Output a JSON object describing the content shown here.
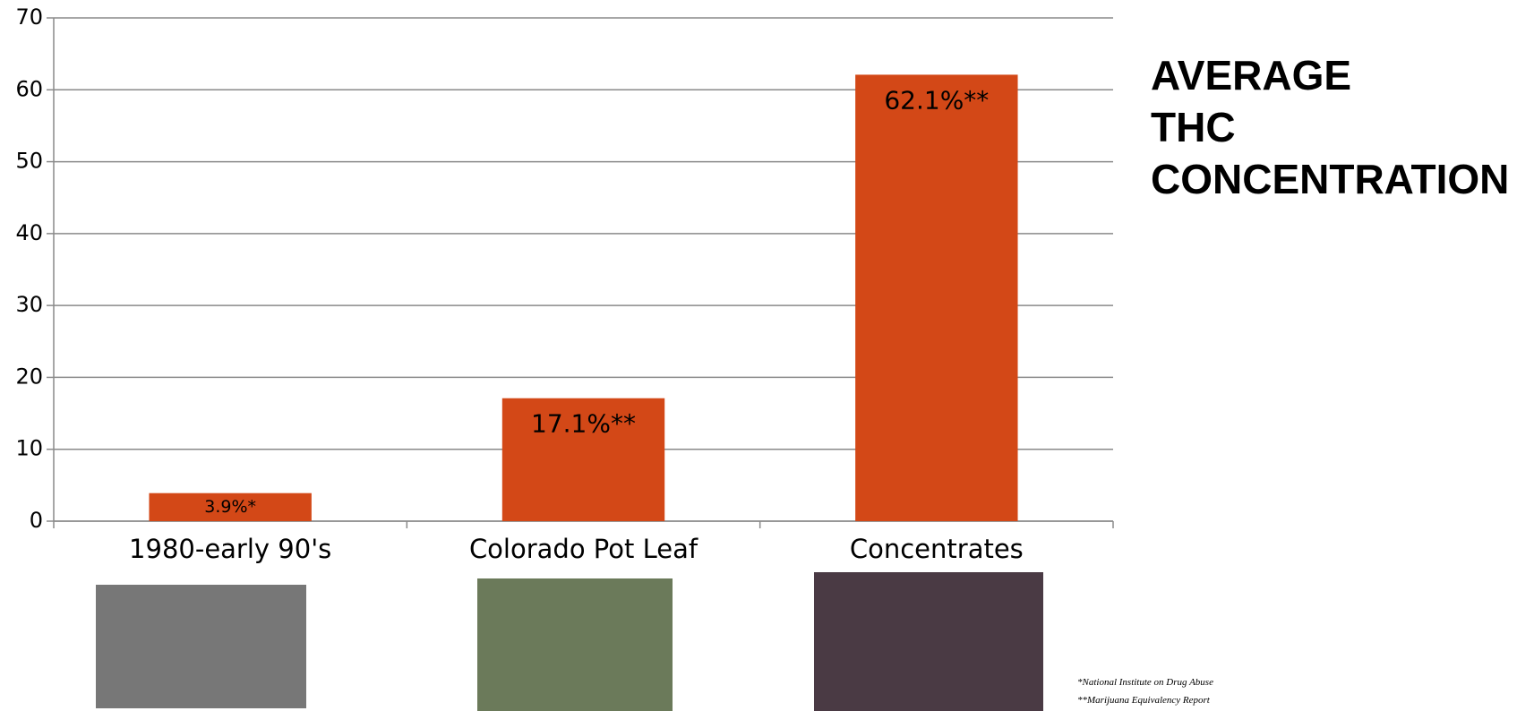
{
  "chart_data": {
    "type": "bar",
    "title": "AVERAGE THC CONCENTRATION",
    "categories": [
      "1980-early 90's",
      "Colorado Pot Leaf",
      "Concentrates"
    ],
    "values": [
      3.9,
      17.1,
      62.1
    ],
    "value_labels": [
      "3.9%*",
      "17.1%**",
      "62.1%**"
    ],
    "color": "#d34817",
    "ylim": [
      0,
      70
    ],
    "yticks": [
      0,
      10,
      20,
      30,
      40,
      50,
      60,
      70
    ],
    "grid": true,
    "notes": [
      "*National Institute on Drug Abuse",
      "**Marijuana Equivalency Report"
    ]
  }
}
